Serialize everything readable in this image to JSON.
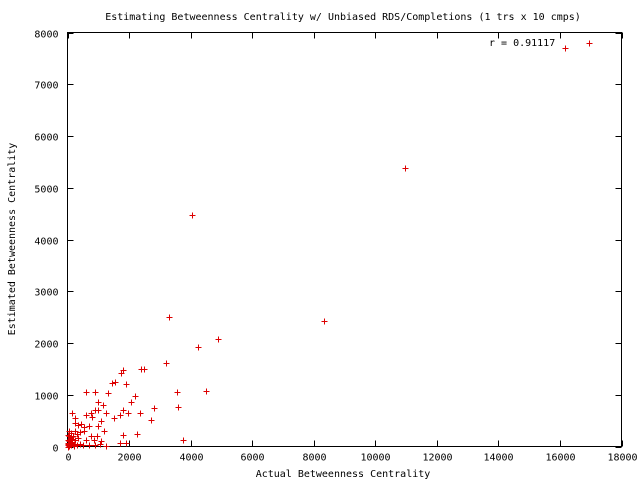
{
  "chart_data": {
    "type": "scatter",
    "title": "Estimating Betweenness Centrality w/ Unbiased RDS/Completions (1 trs x 10 cmps)",
    "xlabel": "Actual Betweenness Centrality",
    "ylabel": "Estimated Betweenness Centrality",
    "xlim": [
      0,
      18000
    ],
    "ylim": [
      0,
      8000
    ],
    "xticks": [
      "0",
      "2000",
      "4000",
      "6000",
      "8000",
      "10000",
      "12000",
      "14000",
      "16000",
      "18000"
    ],
    "yticks": [
      "0",
      "1000",
      "2000",
      "3000",
      "4000",
      "5000",
      "6000",
      "7000",
      "8000"
    ],
    "xtick_values": [
      0,
      2000,
      4000,
      6000,
      8000,
      10000,
      12000,
      14000,
      16000,
      18000
    ],
    "ytick_values": [
      0,
      1000,
      2000,
      3000,
      4000,
      5000,
      6000,
      7000,
      8000
    ],
    "grid": false,
    "annotation": "r = 0.91117",
    "marker_color": "#dd0000",
    "series": [
      {
        "points": [
          [
            16950,
            7800
          ],
          [
            16150,
            7700
          ],
          [
            10950,
            5380
          ],
          [
            8350,
            2420
          ],
          [
            4050,
            4480
          ],
          [
            3300,
            2500
          ],
          [
            4900,
            2080
          ],
          [
            4250,
            1930
          ],
          [
            3200,
            1620
          ],
          [
            2500,
            1500
          ],
          [
            2400,
            1500
          ],
          [
            1800,
            1480
          ],
          [
            1750,
            1420
          ],
          [
            1550,
            1240
          ],
          [
            1450,
            1230
          ],
          [
            1900,
            1200
          ],
          [
            3550,
            1050
          ],
          [
            4500,
            1080
          ],
          [
            600,
            1060
          ],
          [
            900,
            1050
          ],
          [
            1300,
            1040
          ],
          [
            2200,
            980
          ],
          [
            1000,
            860
          ],
          [
            2050,
            860
          ],
          [
            1150,
            800
          ],
          [
            2800,
            750
          ],
          [
            3600,
            760
          ],
          [
            1800,
            700
          ],
          [
            900,
            700
          ],
          [
            1000,
            700
          ],
          [
            750,
            650
          ],
          [
            1250,
            650
          ],
          [
            1950,
            650
          ],
          [
            2350,
            640
          ],
          [
            1700,
            610
          ],
          [
            600,
            600
          ],
          [
            150,
            650
          ],
          [
            1500,
            550
          ],
          [
            800,
            570
          ],
          [
            250,
            550
          ],
          [
            1100,
            500
          ],
          [
            2700,
            510
          ],
          [
            250,
            450
          ],
          [
            350,
            420
          ],
          [
            450,
            430
          ],
          [
            550,
            380
          ],
          [
            700,
            400
          ],
          [
            1000,
            400
          ],
          [
            1200,
            300
          ],
          [
            250,
            300
          ],
          [
            400,
            280
          ],
          [
            550,
            290
          ],
          [
            300,
            250
          ],
          [
            1800,
            220
          ],
          [
            2250,
            240
          ],
          [
            750,
            200
          ],
          [
            950,
            200
          ],
          [
            600,
            130
          ],
          [
            850,
            120
          ],
          [
            1100,
            100
          ],
          [
            3750,
            120
          ],
          [
            1900,
            60
          ],
          [
            1700,
            60
          ],
          [
            0,
            230
          ],
          [
            50,
            200
          ],
          [
            100,
            180
          ],
          [
            150,
            140
          ],
          [
            0,
            120
          ],
          [
            50,
            100
          ],
          [
            100,
            80
          ],
          [
            150,
            60
          ],
          [
            200,
            40
          ],
          [
            0,
            40
          ],
          [
            20,
            20
          ],
          [
            50,
            10
          ],
          [
            100,
            20
          ],
          [
            200,
            10
          ],
          [
            300,
            30
          ],
          [
            400,
            50
          ],
          [
            500,
            20
          ],
          [
            700,
            30
          ],
          [
            900,
            20
          ],
          [
            1050,
            40
          ],
          [
            1250,
            10
          ],
          [
            0,
            0
          ],
          [
            30,
            60
          ],
          [
            80,
            140
          ],
          [
            120,
            260
          ],
          [
            180,
            200
          ],
          [
            60,
            300
          ],
          [
            250,
            120
          ],
          [
            350,
            160
          ]
        ]
      }
    ]
  }
}
